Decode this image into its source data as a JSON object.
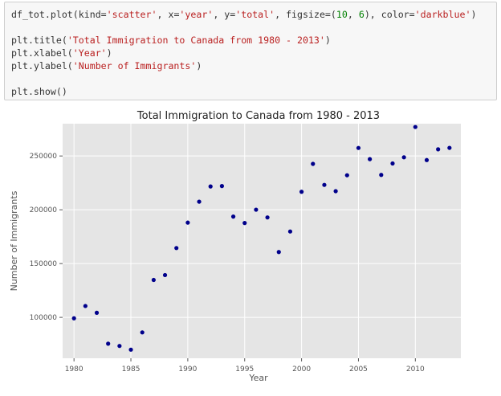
{
  "code_cell": {
    "lines": [
      [
        {
          "t": "df_tot.plot(kind=",
          "c": "plain"
        },
        {
          "t": "'scatter'",
          "c": "str"
        },
        {
          "t": ", x=",
          "c": "plain"
        },
        {
          "t": "'year'",
          "c": "str"
        },
        {
          "t": ", y=",
          "c": "plain"
        },
        {
          "t": "'total'",
          "c": "str"
        },
        {
          "t": ", figsize=(",
          "c": "plain"
        },
        {
          "t": "10",
          "c": "num"
        },
        {
          "t": ", ",
          "c": "plain"
        },
        {
          "t": "6",
          "c": "num"
        },
        {
          "t": "), color=",
          "c": "plain"
        },
        {
          "t": "'darkblue'",
          "c": "str"
        },
        {
          "t": ")",
          "c": "plain"
        }
      ],
      [],
      [
        {
          "t": "plt.title(",
          "c": "plain"
        },
        {
          "t": "'Total Immigration to Canada from 1980 - 2013'",
          "c": "str"
        },
        {
          "t": ")",
          "c": "plain"
        }
      ],
      [
        {
          "t": "plt.xlabel(",
          "c": "plain"
        },
        {
          "t": "'Year'",
          "c": "str"
        },
        {
          "t": ")",
          "c": "plain"
        }
      ],
      [
        {
          "t": "plt.ylabel(",
          "c": "plain"
        },
        {
          "t": "'Number of Immigrants'",
          "c": "str"
        },
        {
          "t": ")",
          "c": "plain"
        }
      ],
      [],
      [
        {
          "t": "plt.show()",
          "c": "plain"
        }
      ]
    ]
  },
  "colors": {
    "string": "#ba2121",
    "number": "#008000",
    "code_text": "#333333",
    "plot_background": "#e5e5e5",
    "grid": "#ffffff",
    "marker": "#00008b"
  },
  "chart_data": {
    "type": "scatter",
    "title": "Total Immigration to Canada from 1980 - 2013",
    "xlabel": "Year",
    "ylabel": "Number of Immigrants",
    "xlim": [
      1979,
      2014
    ],
    "ylim": [
      62000,
      280000
    ],
    "xticks": [
      1980,
      1985,
      1990,
      1995,
      2000,
      2005,
      2010
    ],
    "yticks": [
      100000,
      150000,
      200000,
      250000
    ],
    "grid": true,
    "marker_color": "darkblue",
    "x": [
      1980,
      1981,
      1982,
      1983,
      1984,
      1985,
      1986,
      1987,
      1988,
      1989,
      1990,
      1991,
      1992,
      1993,
      1994,
      1995,
      1996,
      1997,
      1998,
      1999,
      2000,
      2001,
      2002,
      2003,
      2004,
      2005,
      2006,
      2007,
      2008,
      2009,
      2010,
      2011,
      2012,
      2013
    ],
    "y": [
      99137,
      110563,
      104271,
      75550,
      73417,
      69978,
      86048,
      134771,
      139306,
      164432,
      188054,
      207509,
      221687,
      222049,
      193665,
      187712,
      200085,
      192885,
      160727,
      179818,
      216712,
      242658,
      223111,
      217297,
      232083,
      257457,
      247057,
      232405,
      243047,
      248768,
      276956,
      246194,
      256222,
      257537
    ]
  }
}
